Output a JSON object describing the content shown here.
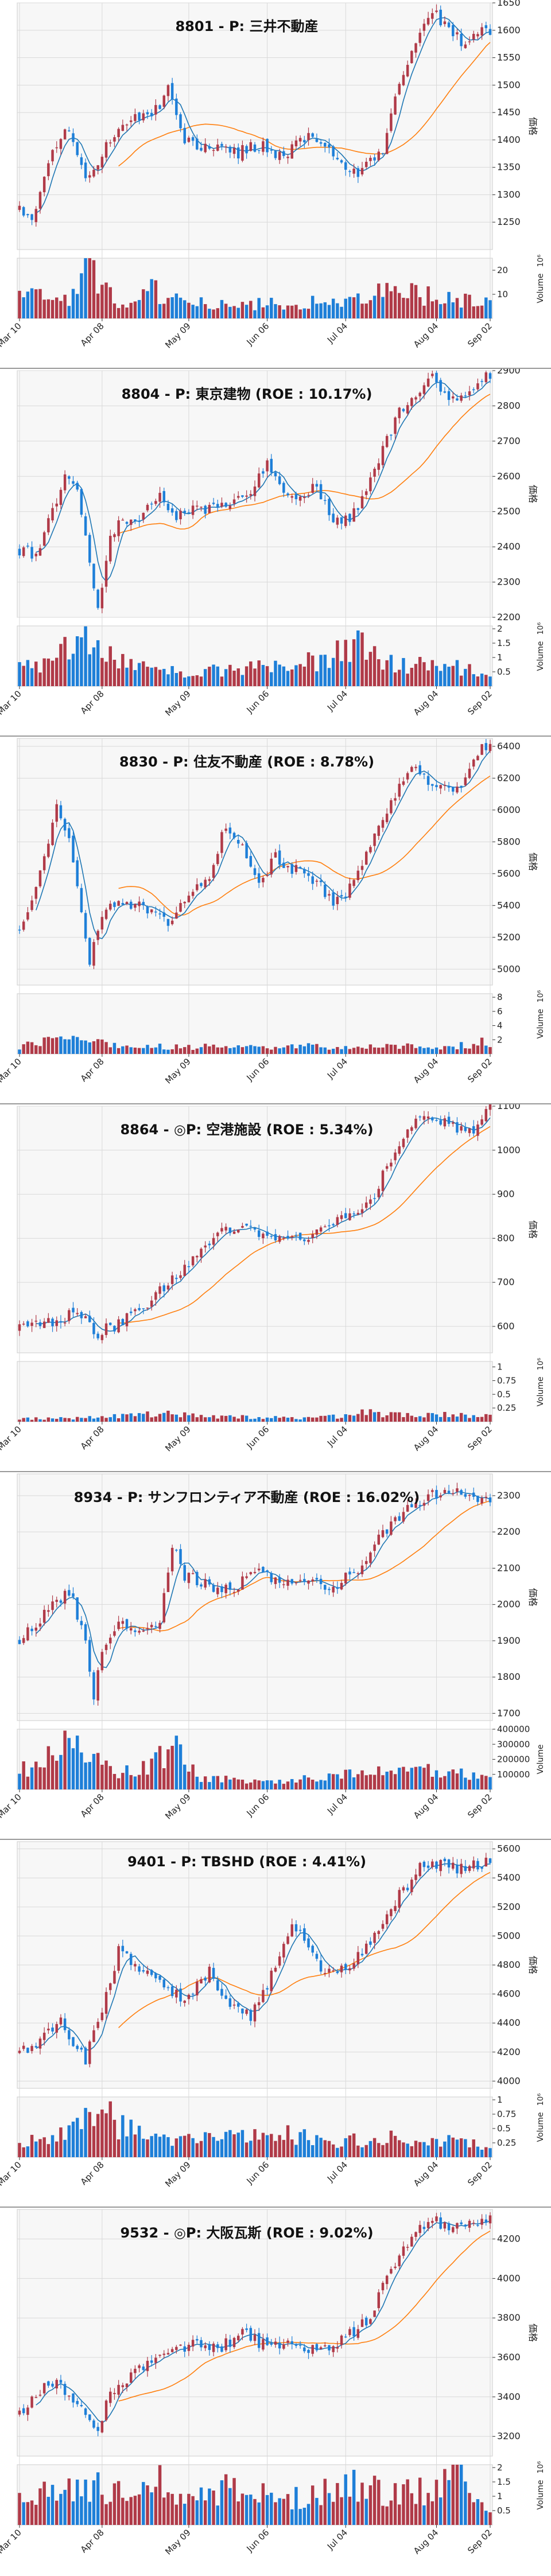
{
  "figure": {
    "xticks": [
      "Mar 10",
      "Apr 08",
      "May 09",
      "Jun 06",
      "Jul 04",
      "Aug 04",
      "Sep 02"
    ],
    "price_axis_label": "価格",
    "volume_axis_label": "Volume",
    "colors": {
      "up": "#b03a48",
      "down": "#1e7fd8",
      "ma_short": "#1f77b4",
      "ma_long": "#ff7f0e",
      "grid": "#d9d9d9",
      "plot_bg": "#f7f7f7"
    }
  },
  "chart_data": [
    {
      "type": "candlestick",
      "title": "8801 - P: 三井不動産",
      "price_ylim": [
        1200,
        1650
      ],
      "price_ticks": [
        1250,
        1300,
        1350,
        1400,
        1450,
        1500,
        1550,
        1600,
        1650
      ],
      "volume_ticks": [
        10,
        20
      ],
      "volume_exponent": "10⁶",
      "volume_max": 25,
      "keypoints": [
        [
          0,
          1275
        ],
        [
          3,
          1250
        ],
        [
          8,
          1390
        ],
        [
          12,
          1415
        ],
        [
          16,
          1335
        ],
        [
          22,
          1395
        ],
        [
          28,
          1440
        ],
        [
          32,
          1445
        ],
        [
          36,
          1490
        ],
        [
          40,
          1400
        ],
        [
          46,
          1385
        ],
        [
          52,
          1375
        ],
        [
          58,
          1390
        ],
        [
          64,
          1370
        ],
        [
          68,
          1410
        ],
        [
          74,
          1390
        ],
        [
          78,
          1350
        ],
        [
          82,
          1335
        ],
        [
          88,
          1385
        ],
        [
          92,
          1510
        ],
        [
          96,
          1575
        ],
        [
          100,
          1640
        ],
        [
          104,
          1600
        ],
        [
          108,
          1575
        ],
        [
          112,
          1600
        ]
      ],
      "vol_keypoints": [
        [
          0,
          9
        ],
        [
          14,
          9
        ],
        [
          16,
          24
        ],
        [
          20,
          16
        ],
        [
          24,
          6
        ],
        [
          32,
          12
        ],
        [
          40,
          7
        ],
        [
          60,
          6
        ],
        [
          80,
          7
        ],
        [
          88,
          12
        ],
        [
          96,
          10
        ],
        [
          104,
          8
        ],
        [
          112,
          7
        ]
      ]
    },
    {
      "type": "candlestick",
      "title": "8804 - P: 東京建物 (ROE : 10.17%)",
      "price_ylim": [
        2200,
        2900
      ],
      "price_ticks": [
        2200,
        2300,
        2400,
        2500,
        2600,
        2700,
        2800,
        2900
      ],
      "volume_ticks": [
        0.5,
        1.0,
        1.5,
        2.0
      ],
      "volume_exponent": "10⁶",
      "volume_max": 2.1,
      "keypoints": [
        [
          0,
          2390
        ],
        [
          4,
          2380
        ],
        [
          8,
          2500
        ],
        [
          11,
          2600
        ],
        [
          14,
          2560
        ],
        [
          17,
          2350
        ],
        [
          19,
          2220
        ],
        [
          22,
          2440
        ],
        [
          26,
          2480
        ],
        [
          30,
          2490
        ],
        [
          34,
          2560
        ],
        [
          38,
          2480
        ],
        [
          44,
          2510
        ],
        [
          50,
          2510
        ],
        [
          56,
          2560
        ],
        [
          60,
          2640
        ],
        [
          64,
          2560
        ],
        [
          68,
          2540
        ],
        [
          72,
          2570
        ],
        [
          76,
          2470
        ],
        [
          80,
          2480
        ],
        [
          84,
          2560
        ],
        [
          88,
          2680
        ],
        [
          92,
          2780
        ],
        [
          96,
          2830
        ],
        [
          100,
          2880
        ],
        [
          104,
          2810
        ],
        [
          108,
          2830
        ],
        [
          112,
          2880
        ]
      ],
      "vol_keypoints": [
        [
          0,
          0.6
        ],
        [
          8,
          1.0
        ],
        [
          14,
          1.5
        ],
        [
          18,
          1.8
        ],
        [
          22,
          1.0
        ],
        [
          30,
          0.6
        ],
        [
          44,
          0.5
        ],
        [
          58,
          0.7
        ],
        [
          66,
          0.9
        ],
        [
          74,
          0.8
        ],
        [
          82,
          1.7
        ],
        [
          88,
          0.8
        ],
        [
          96,
          0.7
        ],
        [
          104,
          0.8
        ],
        [
          112,
          0.4
        ]
      ]
    },
    {
      "type": "candlestick",
      "title": "8830 - P: 住友不動産 (ROE : 8.78%)",
      "price_ylim": [
        4900,
        6450
      ],
      "price_ticks": [
        5000,
        5200,
        5400,
        5600,
        5800,
        6000,
        6200,
        6400
      ],
      "volume_ticks": [
        2,
        4,
        6,
        8
      ],
      "volume_exponent": "10⁶",
      "volume_max": 8.5,
      "keypoints": [
        [
          0,
          5250
        ],
        [
          4,
          5500
        ],
        [
          7,
          5800
        ],
        [
          9,
          6050
        ],
        [
          12,
          5800
        ],
        [
          15,
          5350
        ],
        [
          17,
          5050
        ],
        [
          20,
          5350
        ],
        [
          26,
          5420
        ],
        [
          32,
          5380
        ],
        [
          36,
          5300
        ],
        [
          40,
          5450
        ],
        [
          46,
          5600
        ],
        [
          50,
          5900
        ],
        [
          54,
          5750
        ],
        [
          58,
          5550
        ],
        [
          62,
          5700
        ],
        [
          68,
          5600
        ],
        [
          72,
          5550
        ],
        [
          76,
          5400
        ],
        [
          80,
          5500
        ],
        [
          84,
          5700
        ],
        [
          88,
          5950
        ],
        [
          92,
          6150
        ],
        [
          96,
          6300
        ],
        [
          100,
          6150
        ],
        [
          106,
          6120
        ],
        [
          112,
          6400
        ]
      ],
      "vol_keypoints": [
        [
          0,
          1.0
        ],
        [
          6,
          1.8
        ],
        [
          10,
          3.0
        ],
        [
          14,
          2.0
        ],
        [
          18,
          1.5
        ],
        [
          30,
          1.0
        ],
        [
          50,
          1.0
        ],
        [
          62,
          0.8
        ],
        [
          70,
          1.2
        ],
        [
          80,
          0.9
        ],
        [
          90,
          1.4
        ],
        [
          96,
          1.0
        ],
        [
          104,
          0.9
        ],
        [
          112,
          1.6
        ]
      ]
    },
    {
      "type": "candlestick",
      "title": "8864 - ◎P: 空港施設 (ROE : 5.34%)",
      "price_ylim": [
        540,
        1100
      ],
      "price_ticks": [
        600,
        700,
        800,
        900,
        1000,
        1100
      ],
      "volume_ticks": [
        0.25,
        0.5,
        0.75,
        1.0
      ],
      "volume_exponent": "10⁶",
      "volume_max": 1.1,
      "keypoints": [
        [
          0,
          595
        ],
        [
          6,
          605
        ],
        [
          12,
          625
        ],
        [
          16,
          610
        ],
        [
          19,
          585
        ],
        [
          24,
          605
        ],
        [
          30,
          640
        ],
        [
          36,
          700
        ],
        [
          42,
          755
        ],
        [
          48,
          805
        ],
        [
          54,
          830
        ],
        [
          58,
          815
        ],
        [
          64,
          790
        ],
        [
          70,
          810
        ],
        [
          76,
          830
        ],
        [
          82,
          860
        ],
        [
          86,
          900
        ],
        [
          90,
          980
        ],
        [
          94,
          1040
        ],
        [
          98,
          1080
        ],
        [
          102,
          1070
        ],
        [
          106,
          1045
        ],
        [
          110,
          1050
        ],
        [
          113,
          1095
        ]
      ],
      "vol_keypoints": [
        [
          0,
          0.05
        ],
        [
          20,
          0.08
        ],
        [
          28,
          0.12
        ],
        [
          36,
          0.15
        ],
        [
          44,
          0.1
        ],
        [
          56,
          0.08
        ],
        [
          68,
          0.07
        ],
        [
          78,
          0.1
        ],
        [
          84,
          0.18
        ],
        [
          88,
          0.12
        ],
        [
          96,
          0.15
        ],
        [
          104,
          0.12
        ],
        [
          112,
          0.1
        ]
      ]
    },
    {
      "type": "candlestick",
      "title": "8934 - P: サンフロンティア不動産 (ROE : 16.02%)",
      "price_ylim": [
        1680,
        2360
      ],
      "price_ticks": [
        1700,
        1800,
        1900,
        2000,
        2100,
        2200,
        2300
      ],
      "volume_ticks": [
        100000,
        200000,
        300000,
        400000
      ],
      "volume_exponent": "",
      "volume_max": 400000,
      "keypoints": [
        [
          0,
          1900
        ],
        [
          4,
          1950
        ],
        [
          8,
          2000
        ],
        [
          12,
          2040
        ],
        [
          16,
          1900
        ],
        [
          18,
          1740
        ],
        [
          20,
          1880
        ],
        [
          24,
          1940
        ],
        [
          30,
          1930
        ],
        [
          34,
          1960
        ],
        [
          37,
          2160
        ],
        [
          40,
          2080
        ],
        [
          46,
          2050
        ],
        [
          52,
          2050
        ],
        [
          58,
          2090
        ],
        [
          64,
          2050
        ],
        [
          70,
          2070
        ],
        [
          76,
          2050
        ],
        [
          82,
          2100
        ],
        [
          88,
          2200
        ],
        [
          94,
          2260
        ],
        [
          100,
          2300
        ],
        [
          106,
          2310
        ],
        [
          112,
          2290
        ]
      ],
      "vol_keypoints": [
        [
          0,
          120000
        ],
        [
          6,
          180000
        ],
        [
          12,
          320000
        ],
        [
          16,
          250000
        ],
        [
          20,
          150000
        ],
        [
          28,
          100000
        ],
        [
          34,
          200000
        ],
        [
          38,
          250000
        ],
        [
          44,
          80000
        ],
        [
          60,
          60000
        ],
        [
          76,
          90000
        ],
        [
          86,
          150000
        ],
        [
          94,
          130000
        ],
        [
          102,
          120000
        ],
        [
          112,
          80000
        ]
      ]
    },
    {
      "type": "candlestick",
      "title": "9401 - P: TBSHD (ROE : 4.41%)",
      "price_ylim": [
        3950,
        5650
      ],
      "price_ticks": [
        4000,
        4200,
        4400,
        4600,
        4800,
        5000,
        5200,
        5400,
        5600
      ],
      "volume_ticks": [
        0.25,
        0.5,
        0.75,
        1.0
      ],
      "volume_exponent": "10⁶",
      "volume_max": 1.05,
      "keypoints": [
        [
          0,
          4200
        ],
        [
          4,
          4250
        ],
        [
          10,
          4400
        ],
        [
          16,
          4150
        ],
        [
          20,
          4500
        ],
        [
          24,
          4900
        ],
        [
          28,
          4800
        ],
        [
          34,
          4700
        ],
        [
          40,
          4550
        ],
        [
          46,
          4750
        ],
        [
          52,
          4500
        ],
        [
          56,
          4450
        ],
        [
          60,
          4650
        ],
        [
          66,
          5100
        ],
        [
          70,
          4900
        ],
        [
          74,
          4750
        ],
        [
          80,
          4800
        ],
        [
          86,
          5000
        ],
        [
          90,
          5200
        ],
        [
          94,
          5350
        ],
        [
          98,
          5500
        ],
        [
          102,
          5500
        ],
        [
          106,
          5450
        ],
        [
          112,
          5500
        ]
      ],
      "vol_keypoints": [
        [
          0,
          0.25
        ],
        [
          10,
          0.4
        ],
        [
          16,
          0.6
        ],
        [
          20,
          0.9
        ],
        [
          24,
          0.55
        ],
        [
          30,
          0.4
        ],
        [
          40,
          0.3
        ],
        [
          56,
          0.35
        ],
        [
          66,
          0.4
        ],
        [
          76,
          0.25
        ],
        [
          90,
          0.35
        ],
        [
          100,
          0.3
        ],
        [
          112,
          0.2
        ]
      ]
    },
    {
      "type": "candlestick",
      "title": "9532 - ◎P: 大阪瓦斯 (ROE : 9.02%)",
      "price_ylim": [
        3100,
        4350
      ],
      "price_ticks": [
        3200,
        3400,
        3600,
        3800,
        4000,
        4200
      ],
      "volume_ticks": [
        0.5,
        1.0,
        1.5,
        2.0
      ],
      "volume_exponent": "10⁶",
      "volume_max": 2.1,
      "keypoints": [
        [
          0,
          3300
        ],
        [
          4,
          3400
        ],
        [
          8,
          3480
        ],
        [
          12,
          3420
        ],
        [
          16,
          3300
        ],
        [
          19,
          3250
        ],
        [
          22,
          3400
        ],
        [
          26,
          3480
        ],
        [
          30,
          3550
        ],
        [
          36,
          3620
        ],
        [
          42,
          3680
        ],
        [
          48,
          3640
        ],
        [
          54,
          3720
        ],
        [
          60,
          3650
        ],
        [
          66,
          3700
        ],
        [
          72,
          3620
        ],
        [
          78,
          3680
        ],
        [
          84,
          3780
        ],
        [
          88,
          3950
        ],
        [
          92,
          4100
        ],
        [
          96,
          4250
        ],
        [
          100,
          4300
        ],
        [
          104,
          4250
        ],
        [
          108,
          4280
        ],
        [
          112,
          4300
        ]
      ],
      "vol_keypoints": [
        [
          0,
          1.0
        ],
        [
          8,
          1.3
        ],
        [
          14,
          1.2
        ],
        [
          20,
          1.4
        ],
        [
          26,
          0.9
        ],
        [
          32,
          1.6
        ],
        [
          40,
          1.0
        ],
        [
          52,
          1.3
        ],
        [
          62,
          0.9
        ],
        [
          72,
          1.0
        ],
        [
          80,
          1.5
        ],
        [
          90,
          1.0
        ],
        [
          100,
          1.3
        ],
        [
          106,
          1.9
        ],
        [
          112,
          0.8
        ]
      ]
    }
  ]
}
